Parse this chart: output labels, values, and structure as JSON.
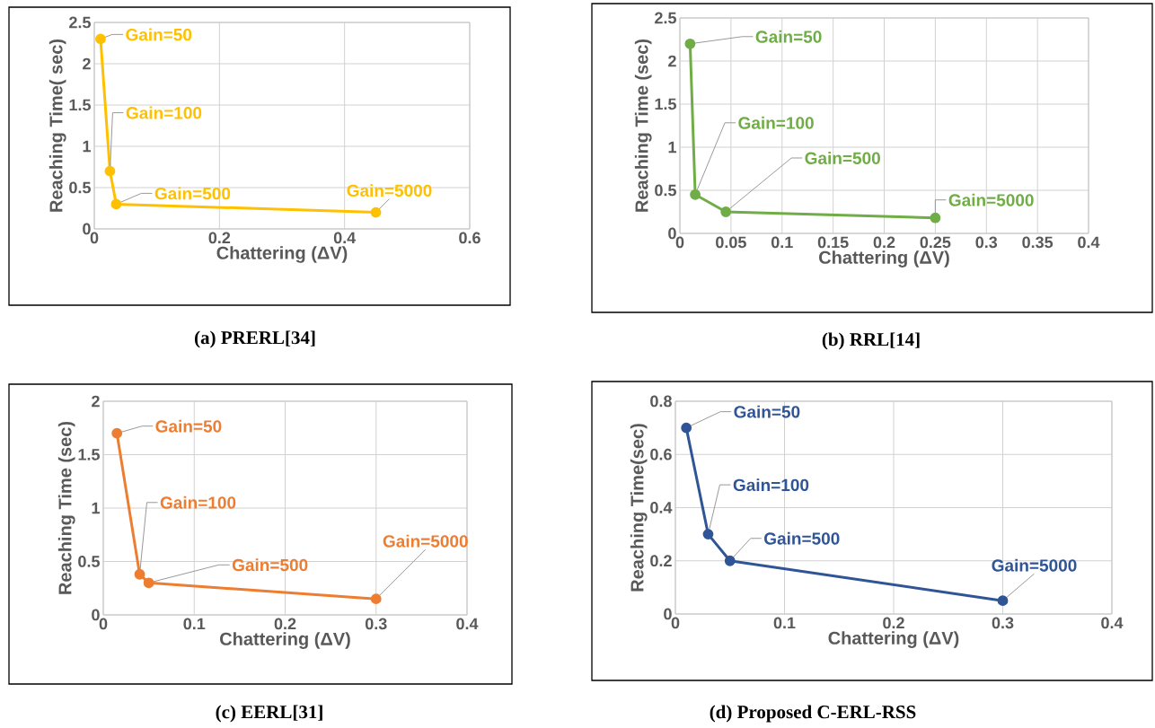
{
  "chart_data": [
    {
      "type": "line",
      "title": "(a)  PRERL[34]",
      "xlabel": "Chattering (ΔV)",
      "ylabel": "Reaching Time( sec)",
      "x": [
        0.01,
        0.025,
        0.035,
        0.45
      ],
      "values": [
        2.3,
        0.7,
        0.3,
        0.2
      ],
      "color": "#ffc000",
      "xlim": [
        0,
        0.6
      ],
      "xticks": [
        0,
        0.2,
        0.4,
        0.6
      ],
      "ylim": [
        0,
        2.5
      ],
      "yticks": [
        0,
        0.5,
        1,
        1.5,
        2,
        2.5
      ],
      "grid": true,
      "marker": "circle",
      "line_style": "solid",
      "annotations": [
        {
          "text": "Gain=50",
          "x": 0.01,
          "y": 2.3
        },
        {
          "text": "Gain=100",
          "x": 0.025,
          "y": 0.7
        },
        {
          "text": "Gain=500",
          "x": 0.035,
          "y": 0.3
        },
        {
          "text": "Gain=5000",
          "x": 0.45,
          "y": 0.2
        }
      ]
    },
    {
      "type": "line",
      "title": "(b)  RRL[14]",
      "xlabel": "Chattering (ΔV)",
      "ylabel": "Reaching Time (sec)",
      "x": [
        0.01,
        0.015,
        0.045,
        0.25
      ],
      "values": [
        2.2,
        0.45,
        0.25,
        0.18
      ],
      "color": "#70ad47",
      "xlim": [
        0,
        0.4
      ],
      "xticks": [
        0,
        0.05,
        0.1,
        0.15,
        0.2,
        0.25,
        0.3,
        0.35,
        0.4
      ],
      "ylim": [
        0,
        2.5
      ],
      "yticks": [
        0,
        0.5,
        1,
        1.5,
        2,
        2.5
      ],
      "grid": true,
      "marker": "circle",
      "line_style": "solid",
      "annotations": [
        {
          "text": "Gain=50",
          "x": 0.01,
          "y": 2.2
        },
        {
          "text": "Gain=100",
          "x": 0.015,
          "y": 0.45
        },
        {
          "text": "Gain=500",
          "x": 0.045,
          "y": 0.25
        },
        {
          "text": "Gain=5000",
          "x": 0.25,
          "y": 0.18
        }
      ]
    },
    {
      "type": "line",
      "title": "(c)  EERL[31]",
      "xlabel": "Chattering (ΔV)",
      "ylabel": "Reaching Time (sec)",
      "x": [
        0.015,
        0.04,
        0.05,
        0.3
      ],
      "values": [
        1.7,
        0.38,
        0.3,
        0.15
      ],
      "color": "#ed7d31",
      "xlim": [
        0,
        0.4
      ],
      "xticks": [
        0,
        0.1,
        0.2,
        0.3,
        0.4
      ],
      "ylim": [
        0,
        2
      ],
      "yticks": [
        0,
        0.5,
        1,
        1.5,
        2
      ],
      "grid": true,
      "marker": "circle",
      "line_style": "solid",
      "annotations": [
        {
          "text": "Gain=50",
          "x": 0.015,
          "y": 1.7
        },
        {
          "text": "Gain=100",
          "x": 0.04,
          "y": 0.38
        },
        {
          "text": "Gain=500",
          "x": 0.05,
          "y": 0.3
        },
        {
          "text": "Gain=5000",
          "x": 0.3,
          "y": 0.15
        }
      ]
    },
    {
      "type": "line",
      "title": "(d)  Proposed C-ERL-RSS",
      "xlabel": "Chattering (ΔV)",
      "ylabel": "Reaching Time(sec)",
      "x": [
        0.01,
        0.03,
        0.05,
        0.3
      ],
      "values": [
        0.7,
        0.3,
        0.2,
        0.05
      ],
      "color": "#2f5597",
      "xlim": [
        0,
        0.4
      ],
      "xticks": [
        0,
        0.1,
        0.2,
        0.3,
        0.4
      ],
      "ylim": [
        0,
        0.8
      ],
      "yticks": [
        0,
        0.2,
        0.4,
        0.6,
        0.8
      ],
      "grid": true,
      "marker": "circle",
      "line_style": "solid",
      "annotations": [
        {
          "text": "Gain=50",
          "x": 0.01,
          "y": 0.7
        },
        {
          "text": "Gain=100",
          "x": 0.03,
          "y": 0.3
        },
        {
          "text": "Gain=500",
          "x": 0.05,
          "y": 0.2
        },
        {
          "text": "Gain=5000",
          "x": 0.3,
          "y": 0.05
        }
      ]
    }
  ]
}
